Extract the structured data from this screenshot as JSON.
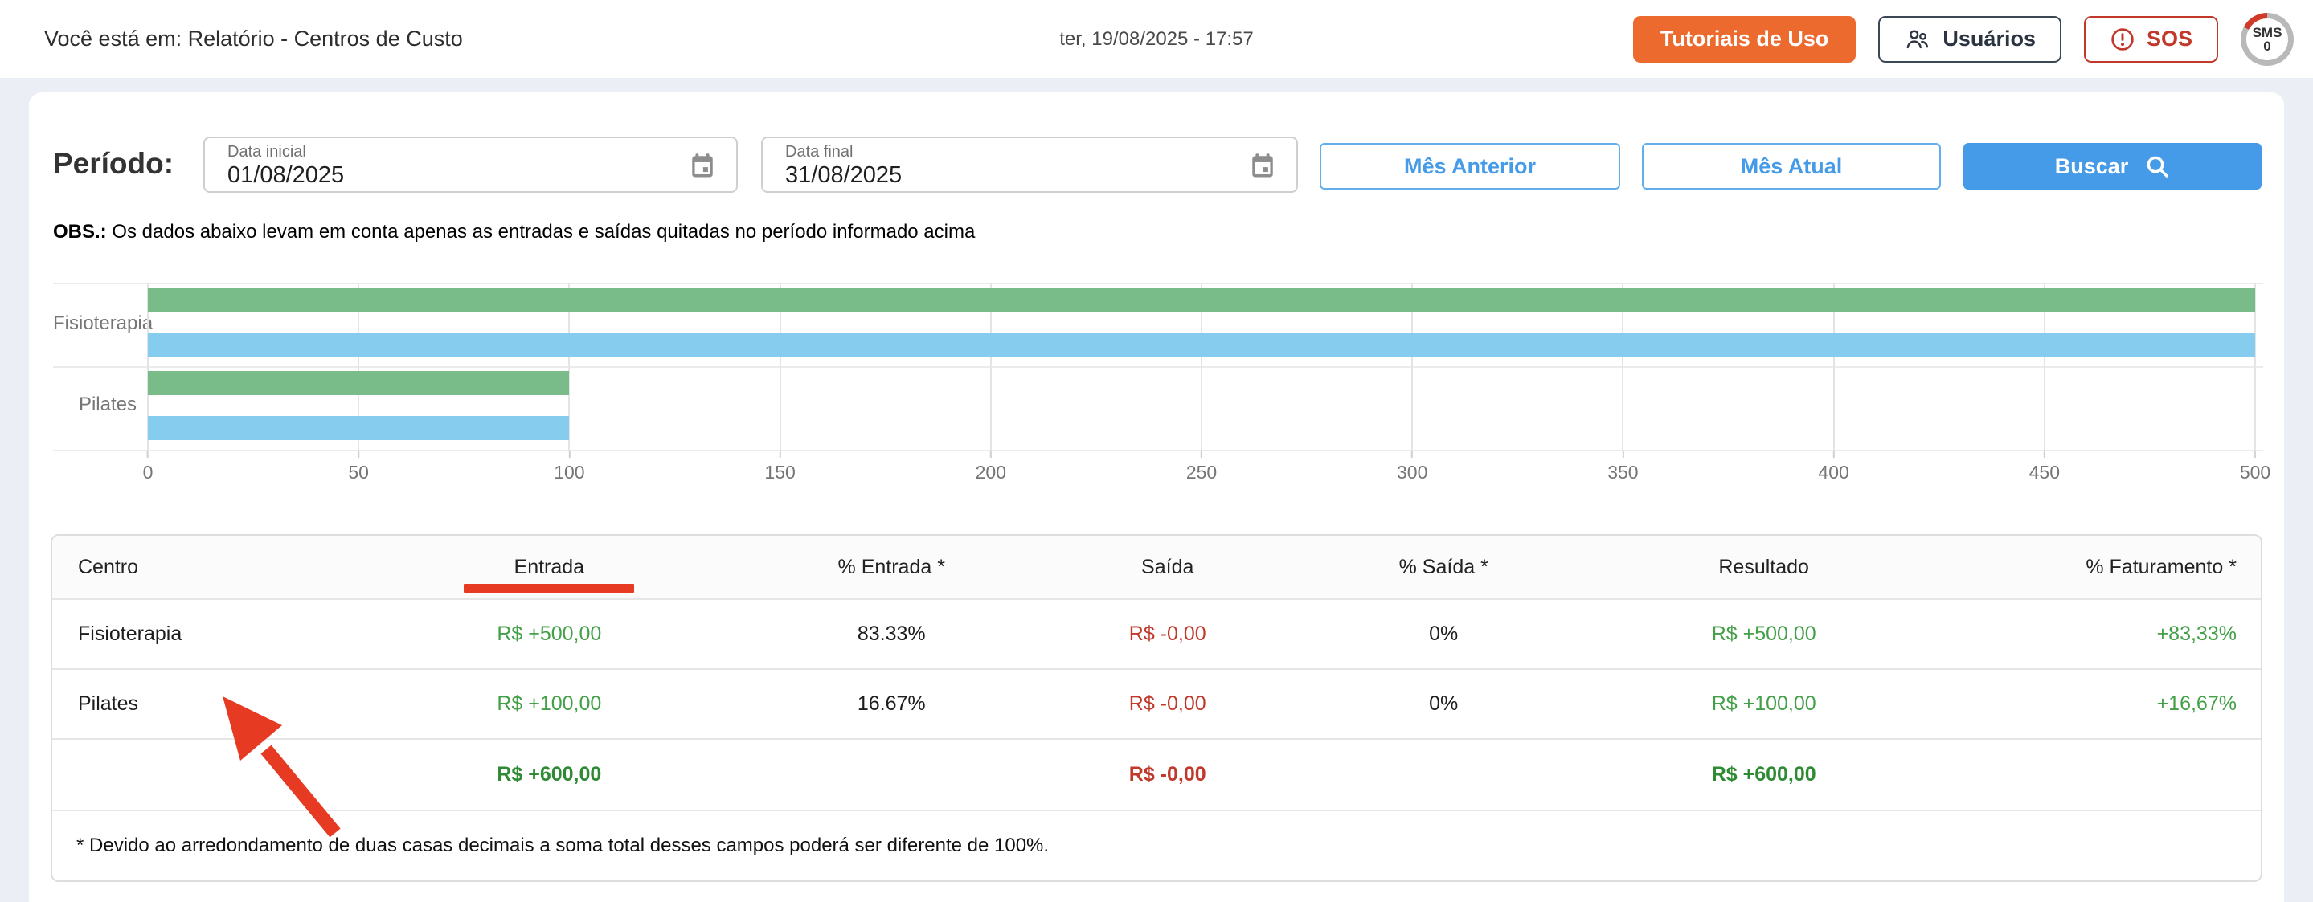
{
  "header": {
    "breadcrumb": "Você está em: Relatório - Centros de Custo",
    "datetime": "ter, 19/08/2025 - 17:57",
    "tutorials_button": "Tutoriais de Uso",
    "users_button": "Usuários",
    "sos_button": "SOS",
    "sms_badge": {
      "label": "SMS",
      "count": "0"
    }
  },
  "filters": {
    "period_label": "Período:",
    "start_date": {
      "label": "Data inicial",
      "value": "01/08/2025"
    },
    "end_date": {
      "label": "Data final",
      "value": "31/08/2025"
    },
    "prev_month_button": "Mês Anterior",
    "current_month_button": "Mês Atual",
    "search_button": "Buscar"
  },
  "note": {
    "prefix": "OBS.:",
    "text": " Os dados abaixo levam em conta apenas as entradas e saídas quitadas no período informado acima"
  },
  "chart_data": {
    "type": "bar",
    "orientation": "horizontal",
    "categories": [
      "Fisioterapia",
      "Pilates"
    ],
    "series": [
      {
        "name": "green",
        "color": "#7abb8a",
        "values": [
          500,
          100
        ]
      },
      {
        "name": "blue",
        "color": "#86ccee",
        "values": [
          500,
          100
        ]
      }
    ],
    "xlim": [
      0,
      500
    ],
    "xticks": [
      0,
      50,
      100,
      150,
      200,
      250,
      300,
      350,
      400,
      450,
      500
    ],
    "grid": true,
    "legend": "none"
  },
  "table": {
    "headers": [
      "Centro",
      "Entrada",
      "% Entrada *",
      "Saída",
      "% Saída *",
      "Resultado",
      "% Faturamento *"
    ],
    "rows": [
      {
        "centro": "Fisioterapia",
        "entrada": "R$ +500,00",
        "p_entrada": "83.33%",
        "saida": "R$ -0,00",
        "p_saida": "0%",
        "resultado": "R$ +500,00",
        "p_faturamento": "+83,33%"
      },
      {
        "centro": "Pilates",
        "entrada": "R$ +100,00",
        "p_entrada": "16.67%",
        "saida": "R$ -0,00",
        "p_saida": "0%",
        "resultado": "R$ +100,00",
        "p_faturamento": "+16,67%"
      }
    ],
    "totals": {
      "entrada": "R$ +600,00",
      "saida": "R$ -0,00",
      "resultado": "R$ +600,00"
    },
    "footnote": "* Devido ao arredondamento de duas casas decimais a soma total desses campos poderá ser diferente de 100%."
  },
  "colors": {
    "accent_orange": "#ed6a2e",
    "accent_blue": "#459be8",
    "positive_green": "#43a047",
    "negative_red": "#c0392b",
    "annotation_red": "#e63b22",
    "chart_green": "#7abb8a",
    "chart_blue": "#86ccee",
    "page_background": "#eceef6"
  },
  "icons": {
    "users": "two-people",
    "sos": "alert-exclamation-circle",
    "calendar": "calendar",
    "search": "magnifier",
    "annotation": "red-arrow-up-left"
  }
}
